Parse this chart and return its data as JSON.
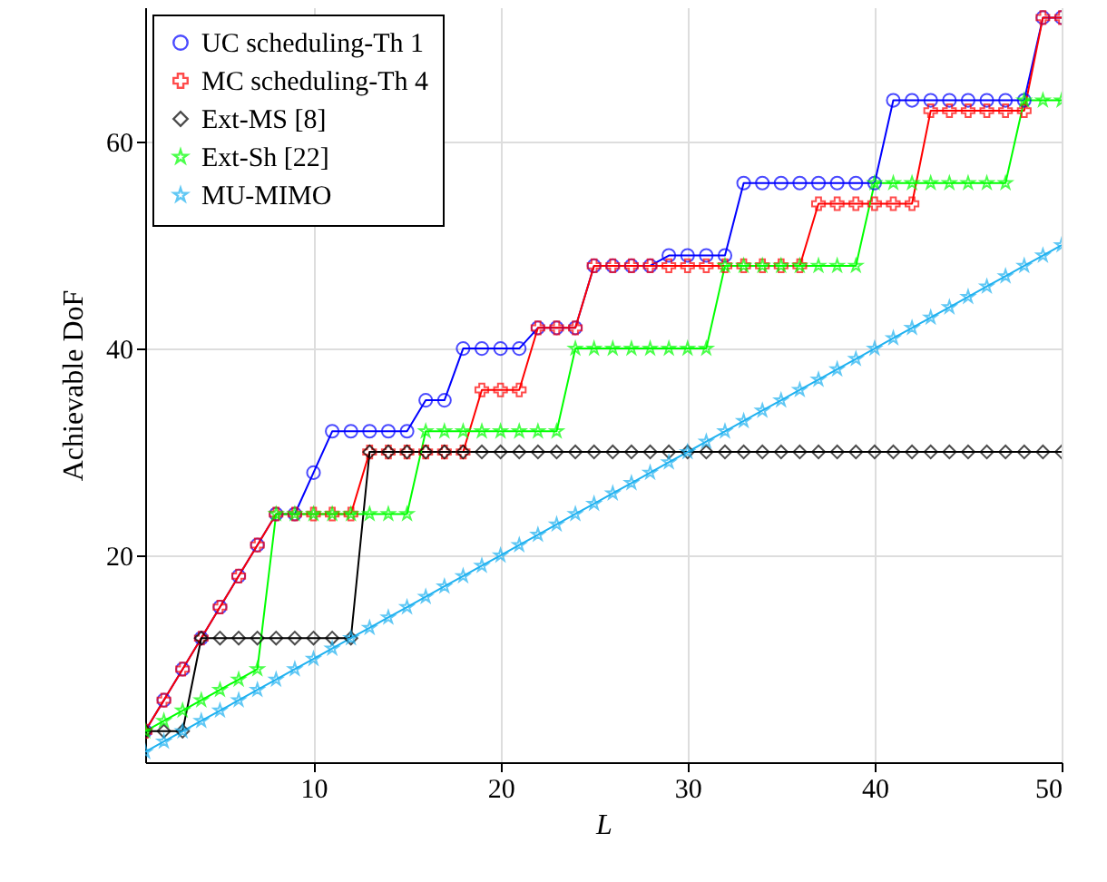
{
  "chart_data": {
    "type": "line",
    "xlabel": "L",
    "ylabel": "Achievable DoF",
    "x": [
      1,
      2,
      3,
      4,
      5,
      6,
      7,
      8,
      9,
      10,
      11,
      12,
      13,
      14,
      15,
      16,
      17,
      18,
      19,
      20,
      21,
      22,
      23,
      24,
      25,
      26,
      27,
      28,
      29,
      30,
      31,
      32,
      33,
      34,
      35,
      36,
      37,
      38,
      39,
      40,
      41,
      42,
      43,
      44,
      45,
      46,
      47,
      48,
      49,
      50
    ],
    "series": [
      {
        "name": "UC scheduling-Th 1",
        "color": "#0000ff",
        "marker": "circle",
        "values": [
          3,
          6,
          9,
          12,
          15,
          18,
          21,
          24,
          24,
          28,
          32,
          32,
          32,
          32,
          32,
          35,
          35,
          40,
          40,
          40,
          40,
          42,
          42,
          42,
          48,
          48,
          48,
          48,
          49,
          49,
          49,
          49,
          56,
          56,
          56,
          56,
          56,
          56,
          56,
          56,
          64,
          64,
          64,
          64,
          64,
          64,
          64,
          64,
          72,
          72
        ]
      },
      {
        "name": "MC scheduling-Th 4",
        "color": "#ff0000",
        "marker": "cross",
        "values": [
          3,
          6,
          9,
          12,
          15,
          18,
          21,
          24,
          24,
          24,
          24,
          24,
          30,
          30,
          30,
          30,
          30,
          30,
          36,
          36,
          36,
          42,
          42,
          42,
          48,
          48,
          48,
          48,
          48,
          48,
          48,
          48,
          48,
          48,
          48,
          48,
          54,
          54,
          54,
          54,
          54,
          54,
          63,
          63,
          63,
          63,
          63,
          63,
          72,
          72
        ]
      },
      {
        "name": "Ext-MS [8]",
        "color": "#000000",
        "marker": "diamond",
        "values": [
          3,
          3,
          3,
          12,
          12,
          12,
          12,
          12,
          12,
          12,
          12,
          12,
          30,
          30,
          30,
          30,
          30,
          30,
          30,
          30,
          30,
          30,
          30,
          30,
          30,
          30,
          30,
          30,
          30,
          30,
          30,
          30,
          30,
          30,
          30,
          30,
          30,
          30,
          30,
          30,
          30,
          30,
          30,
          30,
          30,
          30,
          30,
          30,
          30,
          30
        ]
      },
      {
        "name": "Ext-Sh [22]",
        "color": "#00ff00",
        "marker": "star",
        "values": [
          3,
          4,
          5,
          6,
          7,
          8,
          9,
          24,
          24,
          24,
          24,
          24,
          24,
          24,
          24,
          32,
          32,
          32,
          32,
          32,
          32,
          32,
          32,
          40,
          40,
          40,
          40,
          40,
          40,
          40,
          40,
          48,
          48,
          48,
          48,
          48,
          48,
          48,
          48,
          56,
          56,
          56,
          56,
          56,
          56,
          56,
          56,
          64,
          64,
          64
        ]
      },
      {
        "name": "MU-MIMO",
        "color": "#1fb1f0",
        "marker": "star",
        "values": [
          1,
          2,
          3,
          4,
          5,
          6,
          7,
          8,
          9,
          10,
          11,
          12,
          13,
          14,
          15,
          16,
          17,
          18,
          19,
          20,
          21,
          22,
          23,
          24,
          25,
          26,
          27,
          28,
          29,
          30,
          31,
          32,
          33,
          34,
          35,
          36,
          37,
          38,
          39,
          40,
          41,
          42,
          43,
          44,
          45,
          46,
          47,
          48,
          49,
          50
        ]
      }
    ],
    "xlim": [
      1,
      50
    ],
    "xticks": [
      10,
      20,
      30,
      40,
      50
    ],
    "ylim": [
      0,
      73
    ],
    "yticks": [
      20,
      40,
      60
    ],
    "grid": true,
    "legend": "top left"
  }
}
